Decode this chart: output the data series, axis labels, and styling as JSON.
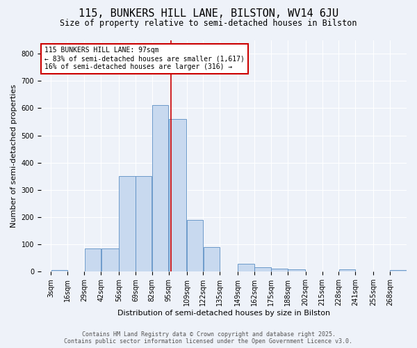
{
  "title": "115, BUNKERS HILL LANE, BILSTON, WV14 6JU",
  "subtitle": "Size of property relative to semi-detached houses in Bilston",
  "xlabel": "Distribution of semi-detached houses by size in Bilston",
  "ylabel": "Number of semi-detached properties",
  "bin_labels": [
    "3sqm",
    "16sqm",
    "29sqm",
    "42sqm",
    "56sqm",
    "69sqm",
    "82sqm",
    "95sqm",
    "109sqm",
    "122sqm",
    "135sqm",
    "149sqm",
    "162sqm",
    "175sqm",
    "188sqm",
    "202sqm",
    "215sqm",
    "228sqm",
    "241sqm",
    "255sqm",
    "268sqm"
  ],
  "bin_edges": [
    3,
    16,
    29,
    42,
    56,
    69,
    82,
    95,
    109,
    122,
    135,
    149,
    162,
    175,
    188,
    202,
    215,
    228,
    241,
    255,
    268
  ],
  "bar_heights": [
    5,
    0,
    85,
    85,
    350,
    350,
    610,
    560,
    190,
    90,
    0,
    28,
    16,
    12,
    8,
    0,
    0,
    7,
    0,
    0,
    6
  ],
  "bar_color": "#c8d9ef",
  "bar_edge_color": "#5b8ec4",
  "property_size": 97,
  "annotation_line1": "115 BUNKERS HILL LANE: 97sqm",
  "annotation_line2": "← 83% of semi-detached houses are smaller (1,617)",
  "annotation_line3": "16% of semi-detached houses are larger (316) →",
  "annotation_box_color": "#ffffff",
  "annotation_box_edge": "#cc0000",
  "vline_color": "#cc0000",
  "ylim": [
    0,
    850
  ],
  "yticks": [
    0,
    100,
    200,
    300,
    400,
    500,
    600,
    700,
    800
  ],
  "footer1": "Contains HM Land Registry data © Crown copyright and database right 2025.",
  "footer2": "Contains public sector information licensed under the Open Government Licence v3.0.",
  "bg_color": "#eef2f9",
  "grid_color": "#ffffff",
  "title_fontsize": 11,
  "subtitle_fontsize": 8.5,
  "label_fontsize": 8,
  "tick_fontsize": 7,
  "annotation_fontsize": 7,
  "footer_fontsize": 6
}
